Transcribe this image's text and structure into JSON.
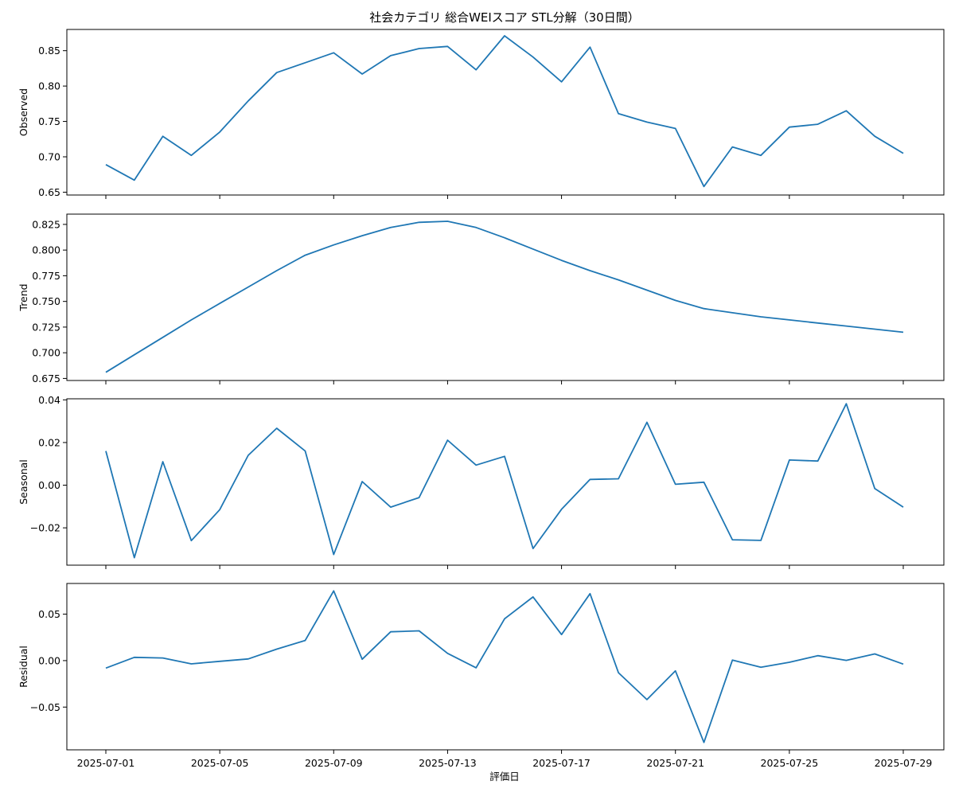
{
  "chart_data": {
    "type": "line",
    "title": "社会カテゴリ 総合WEIスコア STL分解（30日間）",
    "xlabel": "評価日",
    "x": [
      "2025-07-01",
      "2025-07-02",
      "2025-07-03",
      "2025-07-04",
      "2025-07-05",
      "2025-07-06",
      "2025-07-07",
      "2025-07-08",
      "2025-07-09",
      "2025-07-10",
      "2025-07-11",
      "2025-07-12",
      "2025-07-13",
      "2025-07-14",
      "2025-07-15",
      "2025-07-16",
      "2025-07-17",
      "2025-07-18",
      "2025-07-19",
      "2025-07-20",
      "2025-07-21",
      "2025-07-22",
      "2025-07-23",
      "2025-07-24",
      "2025-07-25",
      "2025-07-26",
      "2025-07-27",
      "2025-07-28",
      "2025-07-29"
    ],
    "x_ticks": [
      "2025-07-01",
      "2025-07-05",
      "2025-07-09",
      "2025-07-13",
      "2025-07-17",
      "2025-07-21",
      "2025-07-25",
      "2025-07-29"
    ],
    "color": "#1f77b4",
    "panels": [
      {
        "ylabel": "Observed",
        "ylim": [
          0.646,
          0.88
        ],
        "yticks": [
          0.65,
          0.7,
          0.75,
          0.8,
          0.85
        ],
        "ytick_labels": [
          "0.65",
          "0.70",
          "0.75",
          "0.80",
          "0.85"
        ],
        "values": [
          0.689,
          0.667,
          0.729,
          0.702,
          0.735,
          0.779,
          0.819,
          0.833,
          0.847,
          0.817,
          0.843,
          0.853,
          0.856,
          0.823,
          0.871,
          0.841,
          0.806,
          0.855,
          0.761,
          0.749,
          0.74,
          0.658,
          0.714,
          0.702,
          0.742,
          0.746,
          0.765,
          0.729,
          0.705
        ]
      },
      {
        "ylabel": "Trend",
        "ylim": [
          0.673,
          0.835
        ],
        "yticks": [
          0.675,
          0.7,
          0.725,
          0.75,
          0.775,
          0.8,
          0.825
        ],
        "ytick_labels": [
          "0.675",
          "0.700",
          "0.725",
          "0.750",
          "0.775",
          "0.800",
          "0.825"
        ],
        "values": [
          0.681,
          0.698,
          0.715,
          0.732,
          0.748,
          0.764,
          0.78,
          0.795,
          0.805,
          0.814,
          0.822,
          0.827,
          0.828,
          0.822,
          0.812,
          0.801,
          0.79,
          0.78,
          0.771,
          0.761,
          0.751,
          0.743,
          0.739,
          0.735,
          0.732,
          0.729,
          0.726,
          0.723,
          0.72
        ]
      },
      {
        "ylabel": "Seasonal",
        "ylim": [
          -0.0375,
          0.0405
        ],
        "yticks": [
          -0.02,
          0.0,
          0.02,
          0.04
        ],
        "ytick_labels": [
          "−0.02",
          "0.00",
          "0.02",
          "0.04"
        ],
        "values": [
          0.016,
          -0.034,
          0.011,
          -0.026,
          -0.0115,
          0.014,
          0.0267,
          0.016,
          -0.0325,
          0.0017,
          -0.0103,
          -0.0058,
          0.0211,
          0.0094,
          0.0135,
          -0.0297,
          -0.0113,
          0.0027,
          0.003,
          0.0295,
          0.0004,
          0.0014,
          -0.0256,
          -0.0259,
          0.0118,
          0.0113,
          0.0382,
          -0.0016,
          -0.0103
        ]
      },
      {
        "ylabel": "Residual",
        "ylim": [
          -0.096,
          0.083
        ],
        "yticks": [
          -0.05,
          0.0,
          0.05
        ],
        "ytick_labels": [
          "−0.05",
          "0.00",
          "0.05"
        ],
        "values": [
          -0.008,
          0.0035,
          0.0028,
          -0.0035,
          -0.0008,
          0.0018,
          0.0123,
          0.0217,
          0.075,
          0.0015,
          0.031,
          0.032,
          0.0078,
          -0.0077,
          0.045,
          0.0685,
          0.028,
          0.072,
          -0.013,
          -0.042,
          -0.011,
          -0.088,
          0.0005,
          -0.0072,
          -0.0018,
          0.0053,
          0.0003,
          0.0072,
          -0.0038
        ]
      }
    ]
  }
}
